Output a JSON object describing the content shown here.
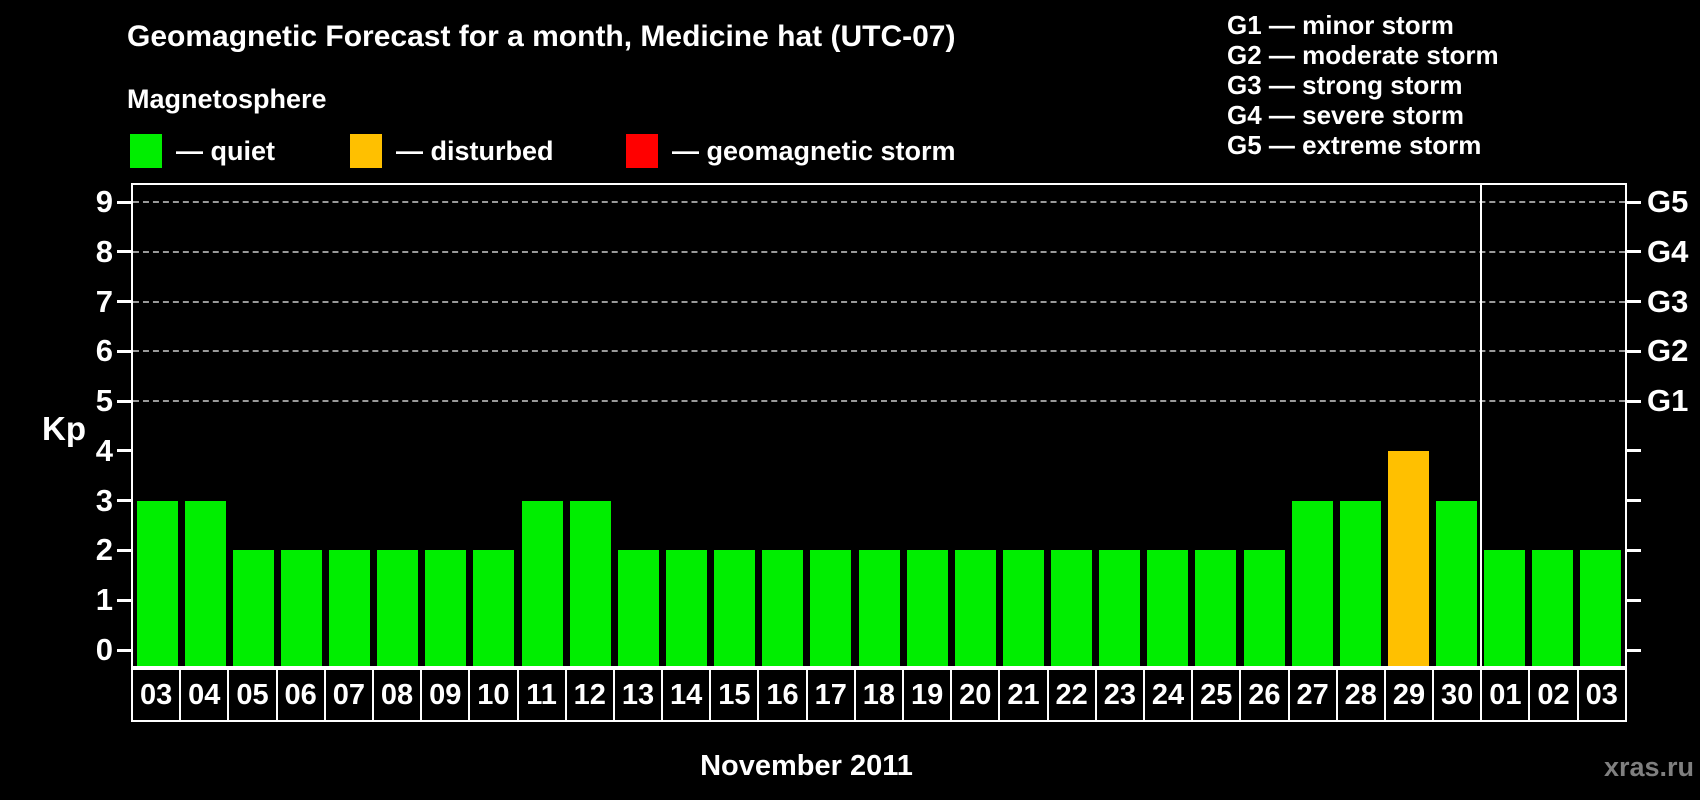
{
  "page": {
    "background": "#000000",
    "text_color": "#ffffff"
  },
  "header": {
    "title": "Geomagnetic Forecast for a month, Medicine hat (UTC-07)",
    "legend_heading": "Magnetosphere"
  },
  "magnetosphere_legend": [
    {
      "key": "quiet",
      "swatch_color": "#00ee00",
      "label": "— quiet"
    },
    {
      "key": "disturbed",
      "swatch_color": "#ffc000",
      "label": "— disturbed"
    },
    {
      "key": "storm",
      "swatch_color": "#ff0000",
      "label": "— geomagnetic storm"
    }
  ],
  "g_scale_legend": [
    "G1 — minor storm",
    "G2 — moderate storm",
    "G3 — strong storm",
    "G4 — severe storm",
    "G5 — extreme storm"
  ],
  "footer": {
    "month_label": "November 2011",
    "watermark": "xras.ru"
  },
  "chart_data": {
    "type": "bar",
    "title": "Geomagnetic Forecast for a month, Medicine hat (UTC-07)",
    "xlabel": "November 2011",
    "ylabel": "Kp",
    "ylim": [
      0,
      9
    ],
    "yticks": [
      0,
      1,
      2,
      3,
      4,
      5,
      6,
      7,
      8,
      9
    ],
    "gridlines_at": [
      5,
      6,
      7,
      8,
      9
    ],
    "grid": "dashed",
    "gridline_color": "#9a9a9a",
    "right_axis_labels": [
      {
        "value": 5,
        "label": "G1"
      },
      {
        "value": 6,
        "label": "G2"
      },
      {
        "value": 7,
        "label": "G3"
      },
      {
        "value": 8,
        "label": "G4"
      },
      {
        "value": 9,
        "label": "G5"
      }
    ],
    "categories": [
      "03",
      "04",
      "05",
      "06",
      "07",
      "08",
      "09",
      "10",
      "11",
      "12",
      "13",
      "14",
      "15",
      "16",
      "17",
      "18",
      "19",
      "20",
      "21",
      "22",
      "23",
      "24",
      "25",
      "26",
      "27",
      "28",
      "29",
      "30",
      "01",
      "02",
      "03"
    ],
    "values": [
      3,
      3,
      2,
      2,
      2,
      2,
      2,
      2,
      3,
      3,
      2,
      2,
      2,
      2,
      2,
      2,
      2,
      2,
      2,
      2,
      2,
      2,
      2,
      2,
      3,
      3,
      4,
      3,
      2,
      2,
      2
    ],
    "statuses": [
      "quiet",
      "quiet",
      "quiet",
      "quiet",
      "quiet",
      "quiet",
      "quiet",
      "quiet",
      "quiet",
      "quiet",
      "quiet",
      "quiet",
      "quiet",
      "quiet",
      "quiet",
      "quiet",
      "quiet",
      "quiet",
      "quiet",
      "quiet",
      "quiet",
      "quiet",
      "quiet",
      "quiet",
      "quiet",
      "quiet",
      "disturbed",
      "quiet",
      "quiet",
      "quiet",
      "quiet"
    ],
    "palette": {
      "quiet": "#00ee00",
      "disturbed": "#ffc000",
      "storm": "#ff0000"
    },
    "month_separator_after_index": 27,
    "legend_position": "top"
  }
}
